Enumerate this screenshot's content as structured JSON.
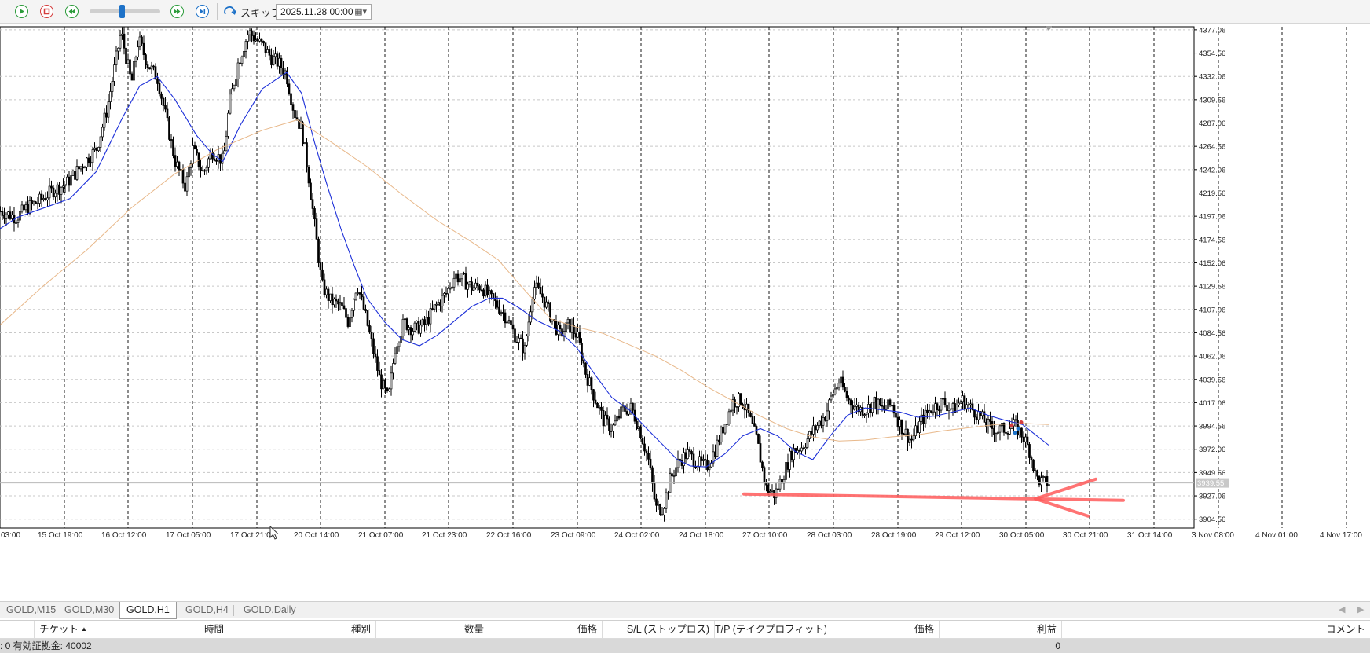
{
  "toolbar": {
    "play_icon": "play-icon",
    "stop_icon": "stop-icon",
    "rewind_icon": "rewind-icon",
    "fast_forward_icon": "fast-forward-icon",
    "step_icon": "step-icon",
    "speed_slider_value": 0.45,
    "skip_label": "スキップ",
    "date_value": "2025.11.28 00:00"
  },
  "chart_data": {
    "type": "candlestick",
    "symbol": "GOLD",
    "timeframe": "H1",
    "x_ticks": [
      "03:00",
      "15 Oct 19:00",
      "16 Oct 12:00",
      "17 Oct 05:00",
      "17 Oct 21:00",
      "20 Oct 14:00",
      "21 Oct 07:00",
      "21 Oct 23:00",
      "22 Oct 16:00",
      "23 Oct 09:00",
      "24 Oct 02:00",
      "24 Oct 18:00",
      "27 Oct 10:00",
      "28 Oct 03:00",
      "28 Oct 19:00",
      "29 Oct 12:00",
      "30 Oct 05:00",
      "30 Oct 21:00",
      "31 Oct 14:00",
      "3 Nov 08:00",
      "4 Nov 01:00",
      "4 Nov 17:00"
    ],
    "y_ticks": [
      "4377.06",
      "4354.56",
      "4332.06",
      "4309.56",
      "4287.06",
      "4264.56",
      "4242.06",
      "4219.56",
      "4197.06",
      "4174.56",
      "4152.06",
      "4129.56",
      "4107.06",
      "4084.56",
      "4062.06",
      "4039.56",
      "4017.06",
      "3994.56",
      "3972.06",
      "3949.56",
      "3927.06",
      "3904.56"
    ],
    "ylim": [
      3896,
      4380
    ],
    "current_price_label": "3939.55",
    "current_price": 3939.55,
    "grid": true,
    "colors": {
      "candles": "#000000",
      "fast_ma": "#1c2fd8",
      "slow_ma": "#e8b88a",
      "annotation_arrow": "#ff5a5a",
      "current_price_line": "#b8b8b8",
      "price_label_bg": "#c8c8c8"
    },
    "series": [
      {
        "kind": "price_path",
        "points": [
          [
            0,
            4202
          ],
          [
            18,
            4196
          ],
          [
            30,
            4205
          ],
          [
            45,
            4212
          ],
          [
            60,
            4222
          ],
          [
            75,
            4228
          ],
          [
            95,
            4248
          ],
          [
            110,
            4262
          ],
          [
            122,
            4300
          ],
          [
            138,
            4375
          ],
          [
            150,
            4325
          ],
          [
            158,
            4368
          ],
          [
            168,
            4345
          ],
          [
            180,
            4330
          ],
          [
            190,
            4290
          ],
          [
            200,
            4250
          ],
          [
            212,
            4225
          ],
          [
            220,
            4262
          ],
          [
            232,
            4238
          ],
          [
            242,
            4260
          ],
          [
            255,
            4250
          ],
          [
            262,
            4305
          ],
          [
            272,
            4345
          ],
          [
            284,
            4375
          ],
          [
            292,
            4368
          ],
          [
            300,
            4362
          ],
          [
            310,
            4350
          ],
          [
            318,
            4345
          ],
          [
            327,
            4335
          ],
          [
            336,
            4298
          ],
          [
            345,
            4280
          ],
          [
            352,
            4240
          ],
          [
            360,
            4185
          ],
          [
            368,
            4130
          ],
          [
            378,
            4115
          ],
          [
            390,
            4110
          ],
          [
            398,
            4095
          ],
          [
            408,
            4132
          ],
          [
            418,
            4100
          ],
          [
            426,
            4070
          ],
          [
            434,
            4040
          ],
          [
            444,
            4020
          ],
          [
            452,
            4072
          ],
          [
            462,
            4095
          ],
          [
            472,
            4088
          ],
          [
            485,
            4092
          ],
          [
            498,
            4110
          ],
          [
            510,
            4122
          ],
          [
            520,
            4140
          ],
          [
            530,
            4135
          ],
          [
            540,
            4128
          ],
          [
            550,
            4130
          ],
          [
            560,
            4118
          ],
          [
            570,
            4110
          ],
          [
            580,
            4098
          ],
          [
            590,
            4080
          ],
          [
            600,
            4068
          ],
          [
            610,
            4130
          ],
          [
            620,
            4120
          ],
          [
            630,
            4100
          ],
          [
            640,
            4082
          ],
          [
            650,
            4092
          ],
          [
            660,
            4082
          ],
          [
            670,
            4045
          ],
          [
            680,
            4022
          ],
          [
            690,
            4000
          ],
          [
            700,
            3992
          ],
          [
            712,
            4010
          ],
          [
            722,
            4012
          ],
          [
            732,
            3990
          ],
          [
            742,
            3960
          ],
          [
            750,
            3915
          ],
          [
            758,
            3915
          ],
          [
            766,
            3942
          ],
          [
            776,
            3960
          ],
          [
            786,
            3968
          ],
          [
            796,
            3960
          ],
          [
            808,
            3955
          ],
          [
            818,
            3972
          ],
          [
            828,
            3995
          ],
          [
            838,
            4018
          ],
          [
            848,
            4020
          ],
          [
            856,
            4005
          ],
          [
            866,
            3980
          ],
          [
            876,
            3935
          ],
          [
            886,
            3928
          ],
          [
            896,
            3948
          ],
          [
            906,
            3970
          ],
          [
            918,
            3975
          ],
          [
            930,
            3990
          ],
          [
            944,
            4005
          ],
          [
            952,
            4025
          ],
          [
            960,
            4038
          ],
          [
            970,
            4020
          ],
          [
            980,
            4012
          ],
          [
            990,
            4010
          ],
          [
            1000,
            4018
          ],
          [
            1010,
            4010
          ],
          [
            1020,
            4015
          ],
          [
            1030,
            3995
          ],
          [
            1042,
            3980
          ],
          [
            1054,
            4000
          ],
          [
            1066,
            4012
          ],
          [
            1078,
            4018
          ],
          [
            1090,
            4010
          ],
          [
            1100,
            4020
          ],
          [
            1110,
            4012
          ],
          [
            1120,
            4005
          ],
          [
            1130,
            3995
          ],
          [
            1140,
            3990
          ],
          [
            1150,
            3992
          ],
          [
            1160,
            3995
          ],
          [
            1170,
            3985
          ],
          [
            1178,
            3970
          ],
          [
            1185,
            3945
          ],
          [
            1192,
            3940
          ],
          [
            1200,
            3939.55
          ]
        ],
        "noise": 14
      },
      {
        "kind": "moving_average",
        "name": "",
        "color_key": "fast_ma",
        "points": [
          [
            0,
            4185
          ],
          [
            20,
            4196
          ],
          [
            50,
            4205
          ],
          [
            80,
            4214
          ],
          [
            110,
            4240
          ],
          [
            140,
            4292
          ],
          [
            160,
            4323
          ],
          [
            180,
            4332
          ],
          [
            200,
            4310
          ],
          [
            225,
            4275
          ],
          [
            243,
            4257
          ],
          [
            255,
            4250
          ],
          [
            275,
            4285
          ],
          [
            300,
            4320
          ],
          [
            328,
            4336
          ],
          [
            345,
            4316
          ],
          [
            360,
            4268
          ],
          [
            375,
            4225
          ],
          [
            390,
            4185
          ],
          [
            405,
            4150
          ],
          [
            420,
            4118
          ],
          [
            440,
            4095
          ],
          [
            460,
            4078
          ],
          [
            480,
            4072
          ],
          [
            500,
            4082
          ],
          [
            520,
            4096
          ],
          [
            540,
            4110
          ],
          [
            560,
            4118
          ],
          [
            575,
            4118
          ],
          [
            595,
            4108
          ],
          [
            615,
            4096
          ],
          [
            640,
            4086
          ],
          [
            660,
            4070
          ],
          [
            680,
            4045
          ],
          [
            700,
            4022
          ],
          [
            720,
            4010
          ],
          [
            740,
            3992
          ],
          [
            760,
            3975
          ],
          [
            775,
            3962
          ],
          [
            790,
            3956
          ],
          [
            808,
            3955
          ],
          [
            830,
            3968
          ],
          [
            850,
            3985
          ],
          [
            870,
            3992
          ],
          [
            890,
            3985
          ],
          [
            910,
            3970
          ],
          [
            930,
            3962
          ],
          [
            950,
            3985
          ],
          [
            970,
            4005
          ],
          [
            990,
            4012
          ],
          [
            1010,
            4010
          ],
          [
            1030,
            4008
          ],
          [
            1050,
            4003
          ],
          [
            1070,
            4004
          ],
          [
            1090,
            4008
          ],
          [
            1110,
            4012
          ],
          [
            1130,
            4005
          ],
          [
            1150,
            4000
          ],
          [
            1170,
            3996
          ],
          [
            1185,
            3986
          ],
          [
            1200,
            3976
          ]
        ]
      },
      {
        "kind": "moving_average",
        "name": "",
        "color_key": "slow_ma",
        "points": [
          [
            0,
            4092
          ],
          [
            50,
            4130
          ],
          [
            100,
            4165
          ],
          [
            150,
            4205
          ],
          [
            200,
            4238
          ],
          [
            250,
            4262
          ],
          [
            300,
            4280
          ],
          [
            340,
            4290
          ],
          [
            380,
            4268
          ],
          [
            420,
            4245
          ],
          [
            460,
            4218
          ],
          [
            500,
            4193
          ],
          [
            540,
            4172
          ],
          [
            570,
            4155
          ],
          [
            600,
            4126
          ],
          [
            630,
            4098
          ],
          [
            660,
            4090
          ],
          [
            690,
            4084
          ],
          [
            720,
            4073
          ],
          [
            750,
            4062
          ],
          [
            780,
            4048
          ],
          [
            810,
            4032
          ],
          [
            840,
            4018
          ],
          [
            870,
            4004
          ],
          [
            900,
            3992
          ],
          [
            930,
            3984
          ],
          [
            960,
            3980
          ],
          [
            990,
            3981
          ],
          [
            1020,
            3984
          ],
          [
            1050,
            3986
          ],
          [
            1080,
            3990
          ],
          [
            1110,
            3993
          ],
          [
            1140,
            3996
          ],
          [
            1170,
            3997
          ],
          [
            1200,
            3996
          ]
        ]
      }
    ],
    "annotations": [
      {
        "type": "arrow",
        "color_key": "annotation_arrow",
        "description": "hand-drawn red arrow pointing left at support level",
        "level": 3925
      }
    ]
  },
  "tabs": [
    "GOLD,M15",
    "GOLD,M30",
    "GOLD,H1",
    "GOLD,H4",
    "GOLD,Daily"
  ],
  "active_tab": "GOLD,H1",
  "tab_scroll_left": "◀",
  "tab_scroll_right": "▶",
  "table": {
    "columns": [
      "チケット",
      "時間",
      "種別",
      "数量",
      "価格",
      "S/L (ストップロス)",
      "T/P (テイクプロフィット)",
      "価格",
      "利益",
      "コメント"
    ],
    "status": ": 0  有効証拠金: 40002",
    "profit": "0"
  }
}
